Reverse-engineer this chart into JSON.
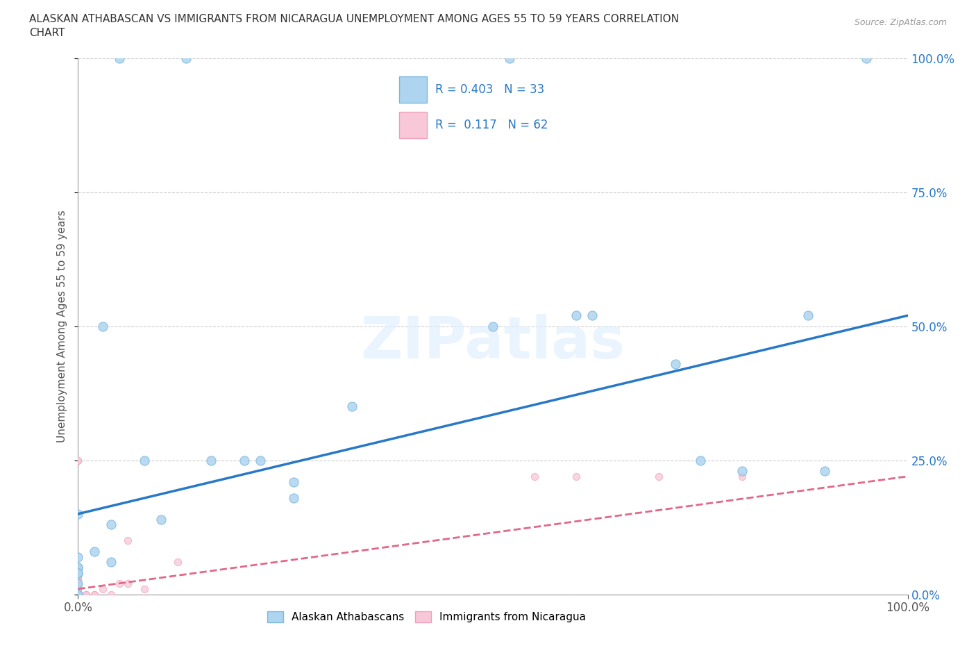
{
  "title_line1": "ALASKAN ATHABASCAN VS IMMIGRANTS FROM NICARAGUA UNEMPLOYMENT AMONG AGES 55 TO 59 YEARS CORRELATION",
  "title_line2": "CHART",
  "source": "Source: ZipAtlas.com",
  "ylabel": "Unemployment Among Ages 55 to 59 years",
  "xlabel": "",
  "xlim": [
    0,
    1.0
  ],
  "ylim": [
    0,
    1.0
  ],
  "xtick_labels": [
    "0.0%",
    "100.0%"
  ],
  "ytick_labels": [
    "0.0%",
    "25.0%",
    "50.0%",
    "75.0%",
    "100.0%"
  ],
  "ytick_positions": [
    0.0,
    0.25,
    0.5,
    0.75,
    1.0
  ],
  "xtick_positions": [
    0.0,
    1.0
  ],
  "watermark": "ZIPatlas",
  "blue_color": "#7ab8e0",
  "blue_scatter_color": "#aed4f0",
  "pink_color": "#f0a0b8",
  "pink_scatter_color": "#f8c8d8",
  "line_blue": "#2878c8",
  "line_pink": "#e06888",
  "background": "#ffffff",
  "athabascan_x": [
    0.05,
    0.13,
    0.03,
    0.08,
    0.16,
    0.22,
    0.26,
    0.5,
    0.52,
    0.6,
    0.72,
    0.8,
    0.9,
    0.04,
    0.1,
    0.2,
    0.26,
    0.62,
    0.75,
    0.88,
    0.95,
    0.0,
    0.0,
    0.0,
    0.0,
    0.0,
    0.0,
    0.02,
    0.04,
    0.0,
    0.33,
    0.0,
    0.0
  ],
  "athabascan_y": [
    1.0,
    1.0,
    0.5,
    0.25,
    0.25,
    0.25,
    0.18,
    0.5,
    1.0,
    0.52,
    0.43,
    0.23,
    0.23,
    0.13,
    0.14,
    0.25,
    0.21,
    0.52,
    0.25,
    0.52,
    1.0,
    0.05,
    0.05,
    0.04,
    0.02,
    0.07,
    0.04,
    0.08,
    0.06,
    0.0,
    0.35,
    0.0,
    0.15
  ],
  "nicaragua_x": [
    0.0,
    0.0,
    0.0,
    0.0,
    0.0,
    0.0,
    0.0,
    0.0,
    0.0,
    0.0,
    0.0,
    0.0,
    0.0,
    0.0,
    0.0,
    0.0,
    0.0,
    0.0,
    0.0,
    0.0,
    0.0,
    0.0,
    0.0,
    0.0,
    0.0,
    0.0,
    0.0,
    0.0,
    0.0,
    0.0,
    0.0,
    0.0,
    0.0,
    0.0,
    0.0,
    0.0,
    0.0,
    0.0,
    0.0,
    0.0,
    0.0,
    0.0,
    0.0,
    0.0,
    0.0,
    0.0,
    0.0,
    0.06,
    0.12,
    0.55,
    0.6,
    0.7,
    0.8,
    0.05,
    0.06,
    0.03,
    0.01,
    0.01,
    0.02,
    0.04,
    0.02,
    0.08
  ],
  "nicaragua_y": [
    0.25,
    0.25,
    0.0,
    0.0,
    0.0,
    0.0,
    0.0,
    0.0,
    0.0,
    0.0,
    0.0,
    0.0,
    0.0,
    0.0,
    0.0,
    0.0,
    0.0,
    0.0,
    0.0,
    0.0,
    0.0,
    0.0,
    0.0,
    0.0,
    0.0,
    0.0,
    0.0,
    0.0,
    0.0,
    0.0,
    0.0,
    0.0,
    0.0,
    0.0,
    0.02,
    0.02,
    0.03,
    0.03,
    0.04,
    0.04,
    0.01,
    0.01,
    0.02,
    0.02,
    0.02,
    0.01,
    0.01,
    0.1,
    0.06,
    0.22,
    0.22,
    0.22,
    0.22,
    0.02,
    0.02,
    0.01,
    0.0,
    0.0,
    0.0,
    0.0,
    0.0,
    0.01
  ],
  "blue_line_x0": 0.0,
  "blue_line_y0": 0.15,
  "blue_line_x1": 1.0,
  "blue_line_y1": 0.52,
  "pink_line_x0": 0.0,
  "pink_line_y0": 0.01,
  "pink_line_x1": 1.0,
  "pink_line_y1": 0.22
}
